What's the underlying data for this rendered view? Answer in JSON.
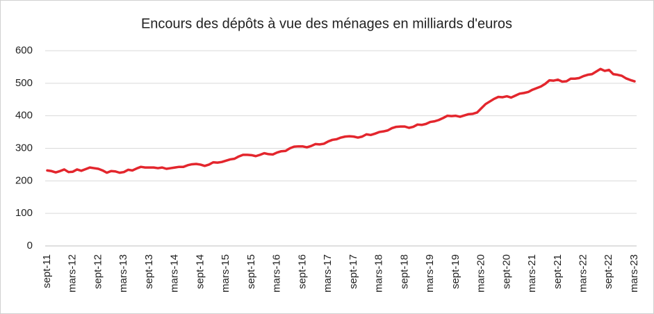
{
  "chart_data": {
    "type": "line",
    "title": "Encours des dépôts à vue des ménages en milliards d'euros",
    "categories": [
      "sept-11",
      null,
      null,
      null,
      null,
      null,
      "mars-12",
      null,
      null,
      null,
      null,
      null,
      "sept-12",
      null,
      null,
      null,
      null,
      null,
      "mars-13",
      null,
      null,
      null,
      null,
      null,
      "sept-13",
      null,
      null,
      null,
      null,
      null,
      "mars-14",
      null,
      null,
      null,
      null,
      null,
      "sept-14",
      null,
      null,
      null,
      null,
      null,
      "mars-15",
      null,
      null,
      null,
      null,
      null,
      "sept-15",
      null,
      null,
      null,
      null,
      null,
      "mars-16",
      null,
      null,
      null,
      null,
      null,
      "sept-16",
      null,
      null,
      null,
      null,
      null,
      "mars-17",
      null,
      null,
      null,
      null,
      null,
      "sept-17",
      null,
      null,
      null,
      null,
      null,
      "mars-18",
      null,
      null,
      null,
      null,
      null,
      "sept-18",
      null,
      null,
      null,
      null,
      null,
      "mars-19",
      null,
      null,
      null,
      null,
      null,
      "sept-19",
      null,
      null,
      null,
      null,
      null,
      "mars-20",
      null,
      null,
      null,
      null,
      null,
      "sept-20",
      null,
      null,
      null,
      null,
      null,
      "mars-21",
      null,
      null,
      null,
      null,
      null,
      "sept-21",
      null,
      null,
      null,
      null,
      null,
      "mars-22",
      null,
      null,
      null,
      null,
      null,
      "sept-22",
      null,
      null,
      null,
      null,
      null,
      "mars-23"
    ],
    "series": [
      {
        "name": "Encours",
        "color": "#e3262d",
        "values": [
          232,
          230,
          226,
          230,
          235,
          227,
          228,
          235,
          231,
          236,
          241,
          239,
          237,
          232,
          225,
          230,
          229,
          225,
          227,
          234,
          232,
          238,
          243,
          241,
          241,
          241,
          239,
          241,
          237,
          239,
          241,
          243,
          243,
          248,
          251,
          252,
          250,
          246,
          250,
          257,
          256,
          258,
          262,
          266,
          268,
          275,
          280,
          280,
          279,
          276,
          280,
          285,
          282,
          281,
          287,
          291,
          292,
          300,
          305,
          306,
          306,
          303,
          307,
          313,
          312,
          314,
          321,
          326,
          328,
          333,
          336,
          337,
          336,
          333,
          336,
          343,
          341,
          345,
          350,
          352,
          355,
          362,
          366,
          367,
          367,
          363,
          366,
          373,
          372,
          375,
          381,
          383,
          387,
          393,
          400,
          399,
          400,
          397,
          401,
          405,
          406,
          410,
          423,
          436,
          444,
          452,
          458,
          457,
          460,
          456,
          462,
          468,
          470,
          473,
          480,
          485,
          490,
          498,
          509,
          508,
          511,
          505,
          506,
          514,
          514,
          516,
          522,
          526,
          528,
          536,
          544,
          538,
          541,
          528,
          526,
          523,
          515,
          510,
          506
        ]
      }
    ],
    "ylim": [
      0,
      600
    ],
    "yticks": [
      0,
      100,
      200,
      300,
      400,
      500,
      600
    ],
    "grid": true
  }
}
